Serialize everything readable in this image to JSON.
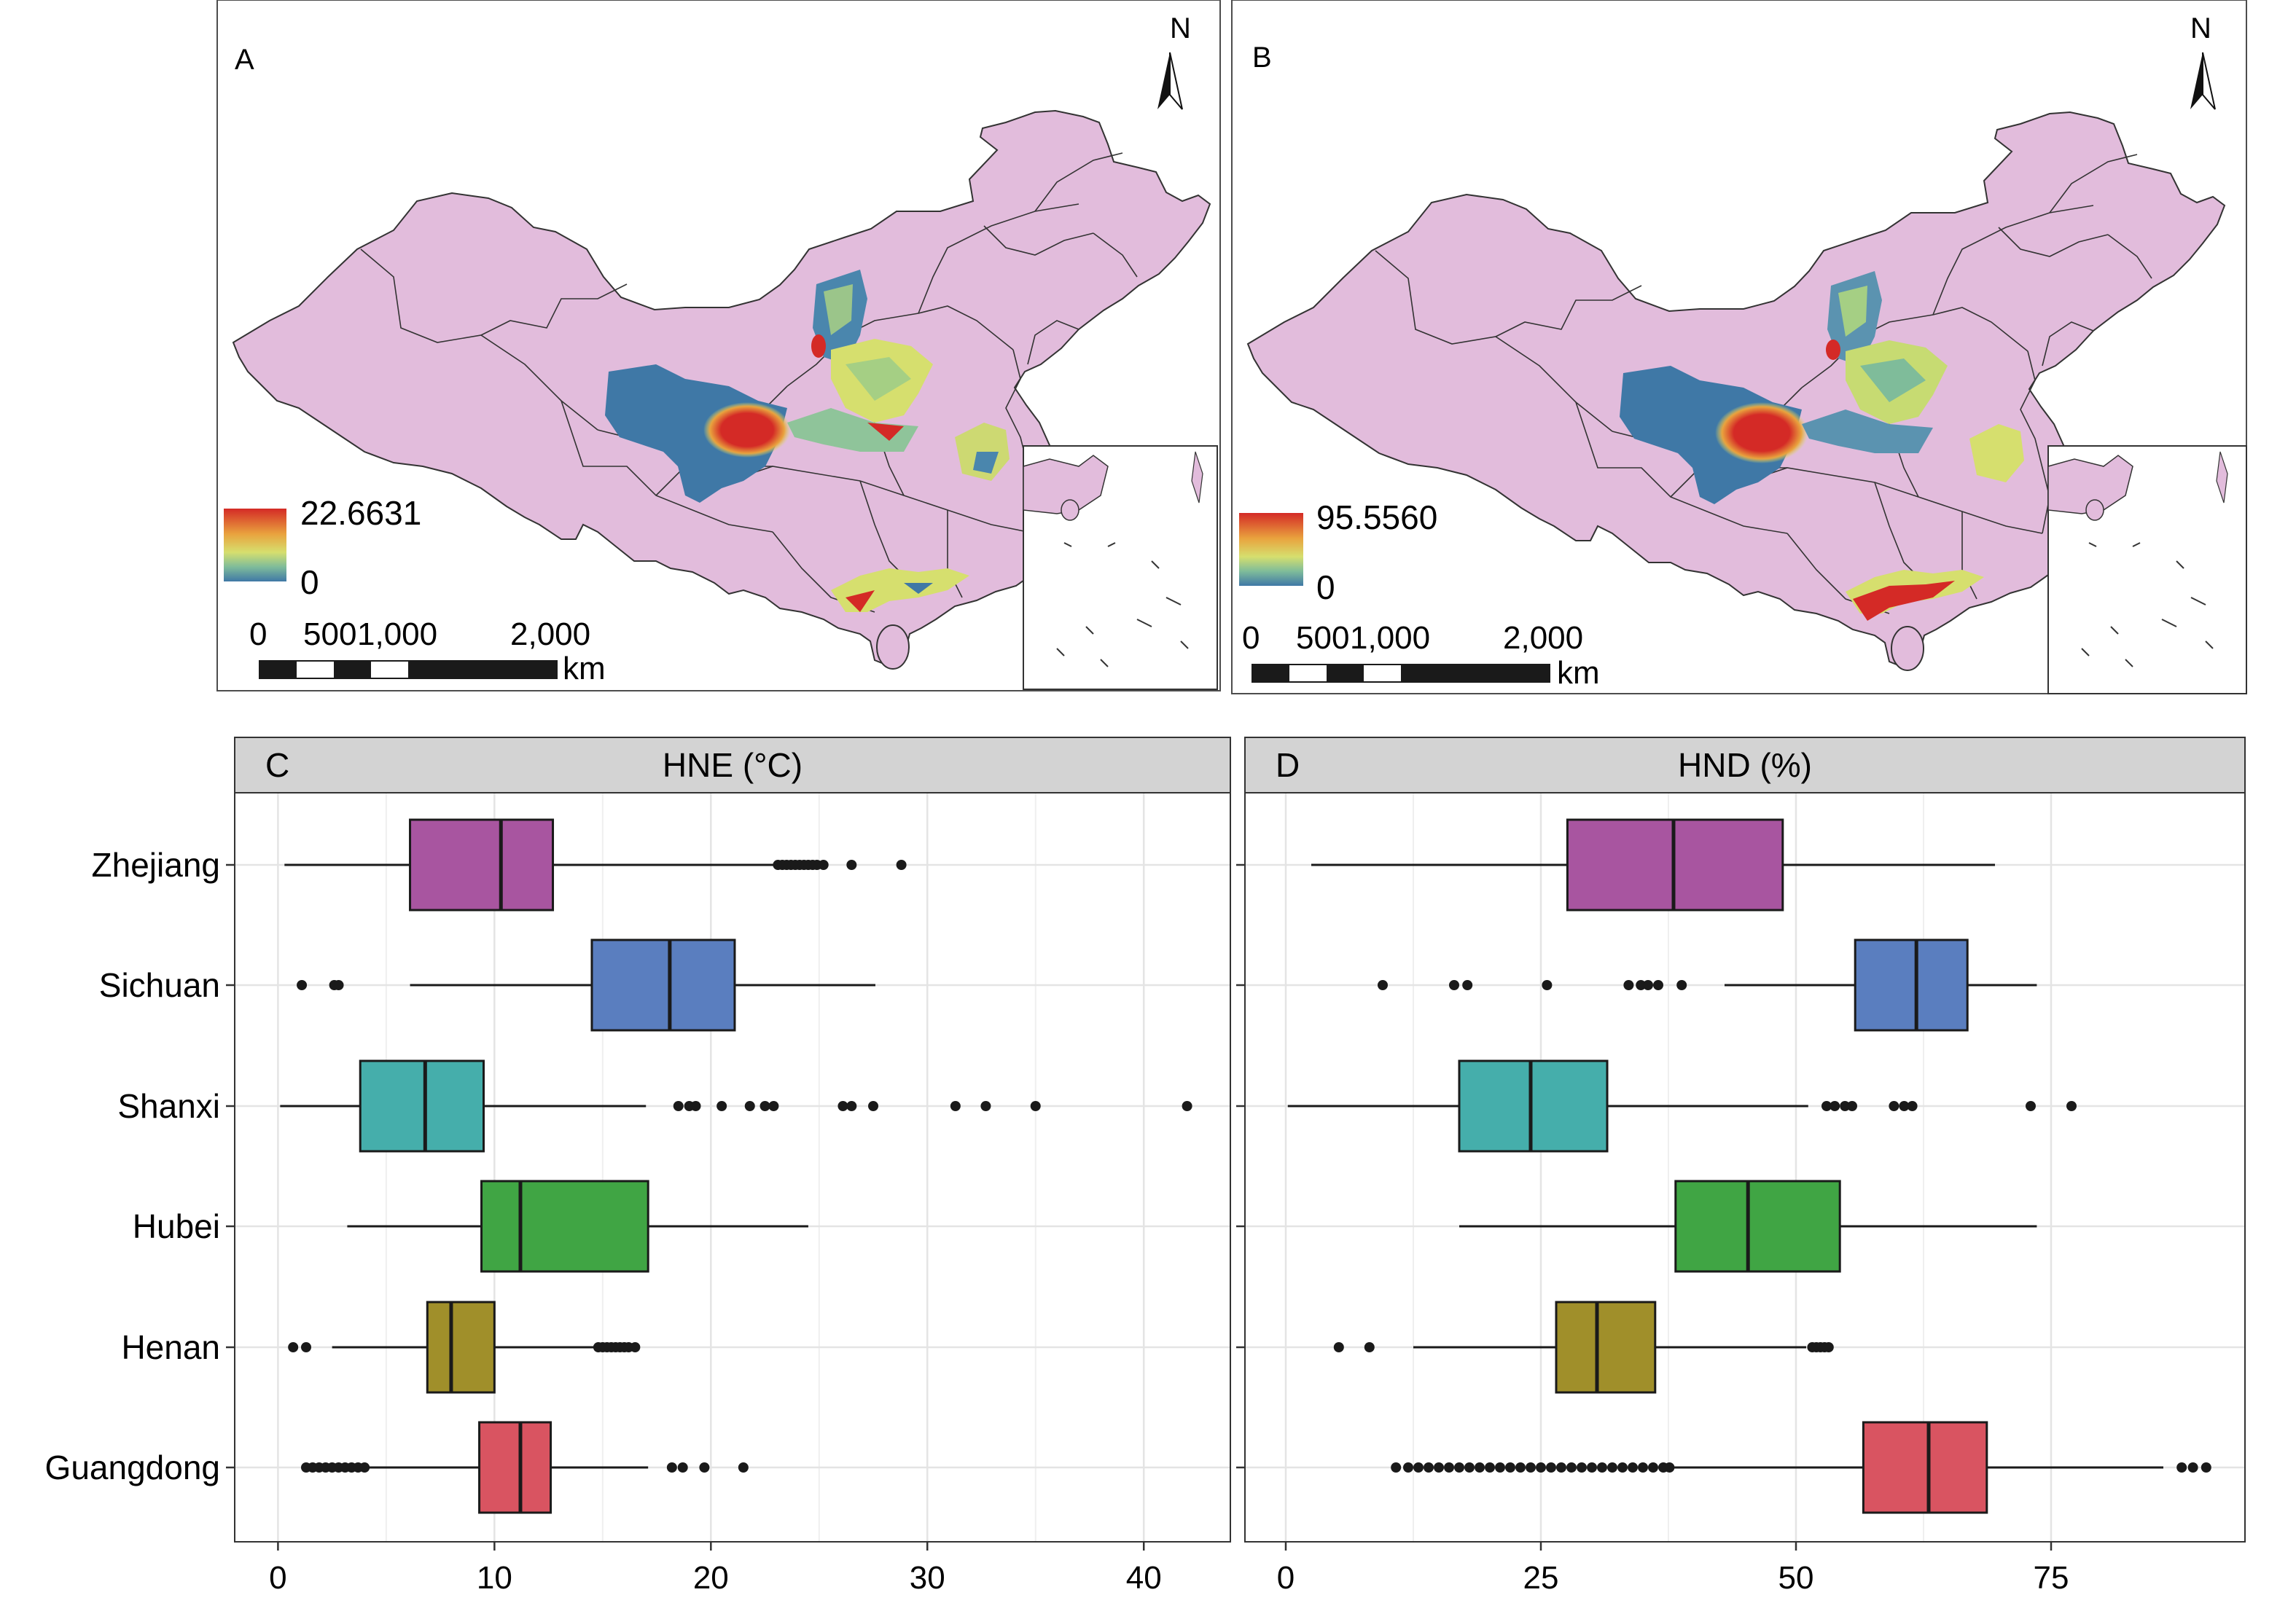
{
  "maps": [
    {
      "id": "A",
      "panel_label": "A",
      "legend_max": "22.6631",
      "legend_min": "0",
      "scale_labels": [
        "0",
        "500",
        "1,000",
        "2,000"
      ],
      "scale_unit": "km",
      "north": "N"
    },
    {
      "id": "B",
      "panel_label": "B",
      "legend_max": "95.5560",
      "legend_min": "0",
      "scale_labels": [
        "0",
        "500",
        "1,000",
        "2,000"
      ],
      "scale_unit": "km",
      "north": "N"
    }
  ],
  "colors": {
    "land": "#e2bcdc",
    "border": "#333333",
    "heat_low": "#3f78a6",
    "heat_mid": "#d6df6e",
    "heat_high": "#d42a26",
    "strip_bg": "#d3d3d3",
    "grid": "#e4e4e4",
    "Zhejiang": "#a855a0",
    "Sichuan": "#5a7ebf",
    "Shanxi": "#45aeab",
    "Hubei": "#40a544",
    "Henan": "#a08f2a",
    "Guangdong": "#d95461"
  },
  "chart_data": [
    {
      "type": "box",
      "panel_label": "C",
      "title": "HNE (°C)",
      "categories": [
        "Zhejiang",
        "Sichuan",
        "Shanxi",
        "Hubei",
        "Henan",
        "Guangdong"
      ],
      "xlim": [
        -2,
        44
      ],
      "xticks": [
        0,
        10,
        20,
        30,
        40
      ],
      "grid": true,
      "boxes": [
        {
          "name": "Zhejiang",
          "whisker_low": 0.3,
          "q1": 6.1,
          "median": 10.3,
          "q3": 12.7,
          "whisker_high": 23.0,
          "outliers": [
            23.1,
            23.3,
            23.5,
            23.7,
            23.9,
            24.1,
            24.3,
            24.5,
            24.7,
            24.9,
            25.2,
            26.5,
            28.8
          ]
        },
        {
          "name": "Sichuan",
          "whisker_low": 6.1,
          "q1": 14.5,
          "median": 18.1,
          "q3": 21.1,
          "whisker_high": 27.6,
          "outliers": [
            1.1,
            2.6,
            2.8
          ]
        },
        {
          "name": "Shanxi",
          "whisker_low": 0.1,
          "q1": 3.8,
          "median": 6.8,
          "q3": 9.5,
          "whisker_high": 17.0,
          "outliers": [
            18.5,
            19.0,
            19.3,
            20.5,
            21.8,
            22.5,
            22.9,
            26.1,
            26.5,
            27.5,
            31.3,
            32.7,
            35.0,
            42.0
          ]
        },
        {
          "name": "Hubei",
          "whisker_low": 3.2,
          "q1": 9.4,
          "median": 11.2,
          "q3": 17.1,
          "whisker_high": 24.5,
          "outliers": []
        },
        {
          "name": "Henan",
          "whisker_low": 2.5,
          "q1": 6.9,
          "median": 8.0,
          "q3": 10.0,
          "whisker_high": 14.7,
          "outliers": [
            0.7,
            1.3,
            14.8,
            15.0,
            15.2,
            15.4,
            15.6,
            15.8,
            16.0,
            16.2,
            16.5
          ]
        },
        {
          "name": "Guangdong",
          "whisker_low": 4.2,
          "q1": 9.3,
          "median": 11.2,
          "q3": 12.6,
          "whisker_high": 17.1,
          "outliers": [
            1.3,
            1.6,
            1.9,
            2.2,
            2.5,
            2.8,
            3.1,
            3.4,
            3.7,
            4.0,
            18.2,
            18.7,
            19.7,
            21.5
          ]
        }
      ]
    },
    {
      "type": "box",
      "panel_label": "D",
      "title": "HND (%)",
      "categories": [
        "Zhejiang",
        "Sichuan",
        "Shanxi",
        "Hubei",
        "Henan",
        "Guangdong"
      ],
      "xlim": [
        -4,
        94
      ],
      "xticks": [
        0,
        25,
        50,
        75
      ],
      "grid": true,
      "boxes": [
        {
          "name": "Zhejiang",
          "whisker_low": 2.5,
          "q1": 27.6,
          "median": 38.0,
          "q3": 48.7,
          "whisker_high": 69.5,
          "outliers": []
        },
        {
          "name": "Sichuan",
          "whisker_low": 43.0,
          "q1": 55.8,
          "median": 61.8,
          "q3": 66.8,
          "whisker_high": 73.6,
          "outliers": [
            9.5,
            16.5,
            17.8,
            25.6,
            33.6,
            34.8,
            35.5,
            36.5,
            38.8
          ]
        },
        {
          "name": "Shanxi",
          "whisker_low": 0.2,
          "q1": 17.0,
          "median": 24.0,
          "q3": 31.5,
          "whisker_high": 51.2,
          "outliers": [
            53.0,
            53.8,
            54.8,
            55.5,
            59.6,
            60.6,
            61.4,
            73.0,
            77.0
          ]
        },
        {
          "name": "Hubei",
          "whisker_low": 17.0,
          "q1": 38.2,
          "median": 45.3,
          "q3": 54.3,
          "whisker_high": 73.6,
          "outliers": []
        },
        {
          "name": "Henan",
          "whisker_low": 12.5,
          "q1": 26.5,
          "median": 30.5,
          "q3": 36.2,
          "whisker_high": 51.0,
          "outliers": [
            5.2,
            8.2,
            51.6,
            52.0,
            52.4,
            52.8,
            53.2
          ]
        },
        {
          "name": "Guangdong",
          "whisker_low": 38.0,
          "q1": 56.6,
          "median": 63.0,
          "q3": 68.7,
          "whisker_high": 86.0,
          "outliers": [
            10.8,
            12.0,
            13.0,
            14.0,
            15.0,
            16.0,
            17.0,
            18.0,
            19.0,
            20.0,
            21.0,
            22.0,
            23.0,
            24.0,
            25.0,
            26.0,
            27.0,
            28.0,
            29.0,
            30.0,
            31.0,
            32.0,
            33.0,
            34.0,
            35.0,
            36.0,
            37.0,
            37.6,
            87.8,
            88.9,
            90.2
          ]
        }
      ]
    }
  ]
}
